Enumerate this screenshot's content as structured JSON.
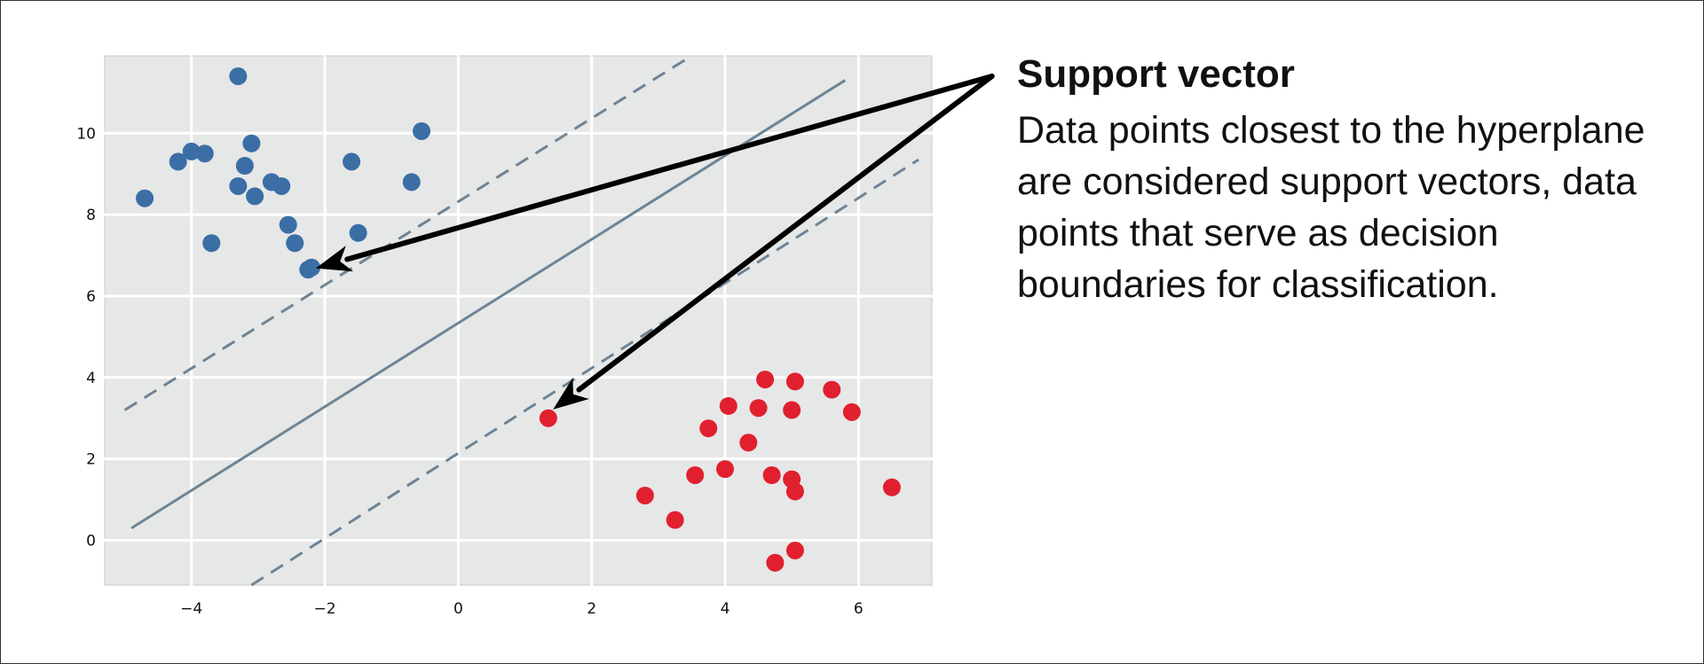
{
  "annotation": {
    "title": "Support vector",
    "body": "Data points closest to the hyperplane are considered support vectors, data points that serve as decision boundaries for classification."
  },
  "chart_data": {
    "type": "scatter",
    "xlim": [
      -5.3,
      7.1
    ],
    "ylim": [
      -1.1,
      11.9
    ],
    "x_ticks": [
      -4,
      -2,
      0,
      2,
      4,
      6
    ],
    "y_ticks": [
      0,
      2,
      4,
      6,
      8,
      10
    ],
    "x_tick_labels": [
      "−4",
      "−2",
      "0",
      "2",
      "4",
      "6"
    ],
    "y_tick_labels": [
      "0",
      "2",
      "4",
      "6",
      "8",
      "10"
    ],
    "grid": true,
    "background_color": "#e6e7e7",
    "grid_color": "#ffffff",
    "series": [
      {
        "color": "#3a6ea5",
        "points": [
          [
            -4.7,
            8.4
          ],
          [
            -4.2,
            9.3
          ],
          [
            -4.0,
            9.55
          ],
          [
            -3.8,
            9.5
          ],
          [
            -3.7,
            7.3
          ],
          [
            -3.3,
            11.4
          ],
          [
            -3.3,
            8.7
          ],
          [
            -3.2,
            9.2
          ],
          [
            -3.1,
            9.75
          ],
          [
            -3.05,
            8.45
          ],
          [
            -2.8,
            8.8
          ],
          [
            -2.65,
            8.7
          ],
          [
            -2.55,
            7.75
          ],
          [
            -2.45,
            7.3
          ],
          [
            -2.25,
            6.65
          ],
          [
            -2.2,
            6.7
          ],
          [
            -1.6,
            9.3
          ],
          [
            -1.5,
            7.55
          ],
          [
            -0.7,
            8.8
          ],
          [
            -0.55,
            10.05
          ]
        ]
      },
      {
        "color": "#e0202f",
        "points": [
          [
            1.35,
            3.0
          ],
          [
            2.8,
            1.1
          ],
          [
            3.25,
            0.5
          ],
          [
            3.55,
            1.6
          ],
          [
            3.75,
            2.75
          ],
          [
            4.0,
            1.75
          ],
          [
            4.05,
            3.3
          ],
          [
            4.35,
            2.4
          ],
          [
            4.5,
            3.25
          ],
          [
            4.6,
            3.95
          ],
          [
            4.7,
            1.6
          ],
          [
            4.75,
            -0.55
          ],
          [
            5.0,
            1.5
          ],
          [
            5.0,
            3.2
          ],
          [
            5.05,
            3.9
          ],
          [
            5.05,
            1.2
          ],
          [
            5.05,
            -0.25
          ],
          [
            5.6,
            3.7
          ],
          [
            5.9,
            3.15
          ],
          [
            6.5,
            1.3
          ]
        ]
      }
    ],
    "lines": [
      {
        "style": "dashed",
        "color": "#6e8494",
        "points": [
          [
            -5.0,
            3.2
          ],
          [
            3.4,
            11.8
          ]
        ]
      },
      {
        "style": "solid",
        "color": "#6e8494",
        "points": [
          [
            -4.9,
            0.3
          ],
          [
            5.8,
            11.3
          ]
        ]
      },
      {
        "style": "dashed",
        "color": "#6e8494",
        "points": [
          [
            -3.1,
            -1.1
          ],
          [
            6.9,
            9.35
          ]
        ]
      }
    ],
    "arrows": [
      {
        "color": "#000000",
        "from": [
          8.0,
          11.4
        ],
        "to": [
          -2.1,
          6.7
        ]
      },
      {
        "color": "#000000",
        "from": [
          8.0,
          11.4
        ],
        "to": [
          1.45,
          3.25
        ]
      }
    ]
  }
}
